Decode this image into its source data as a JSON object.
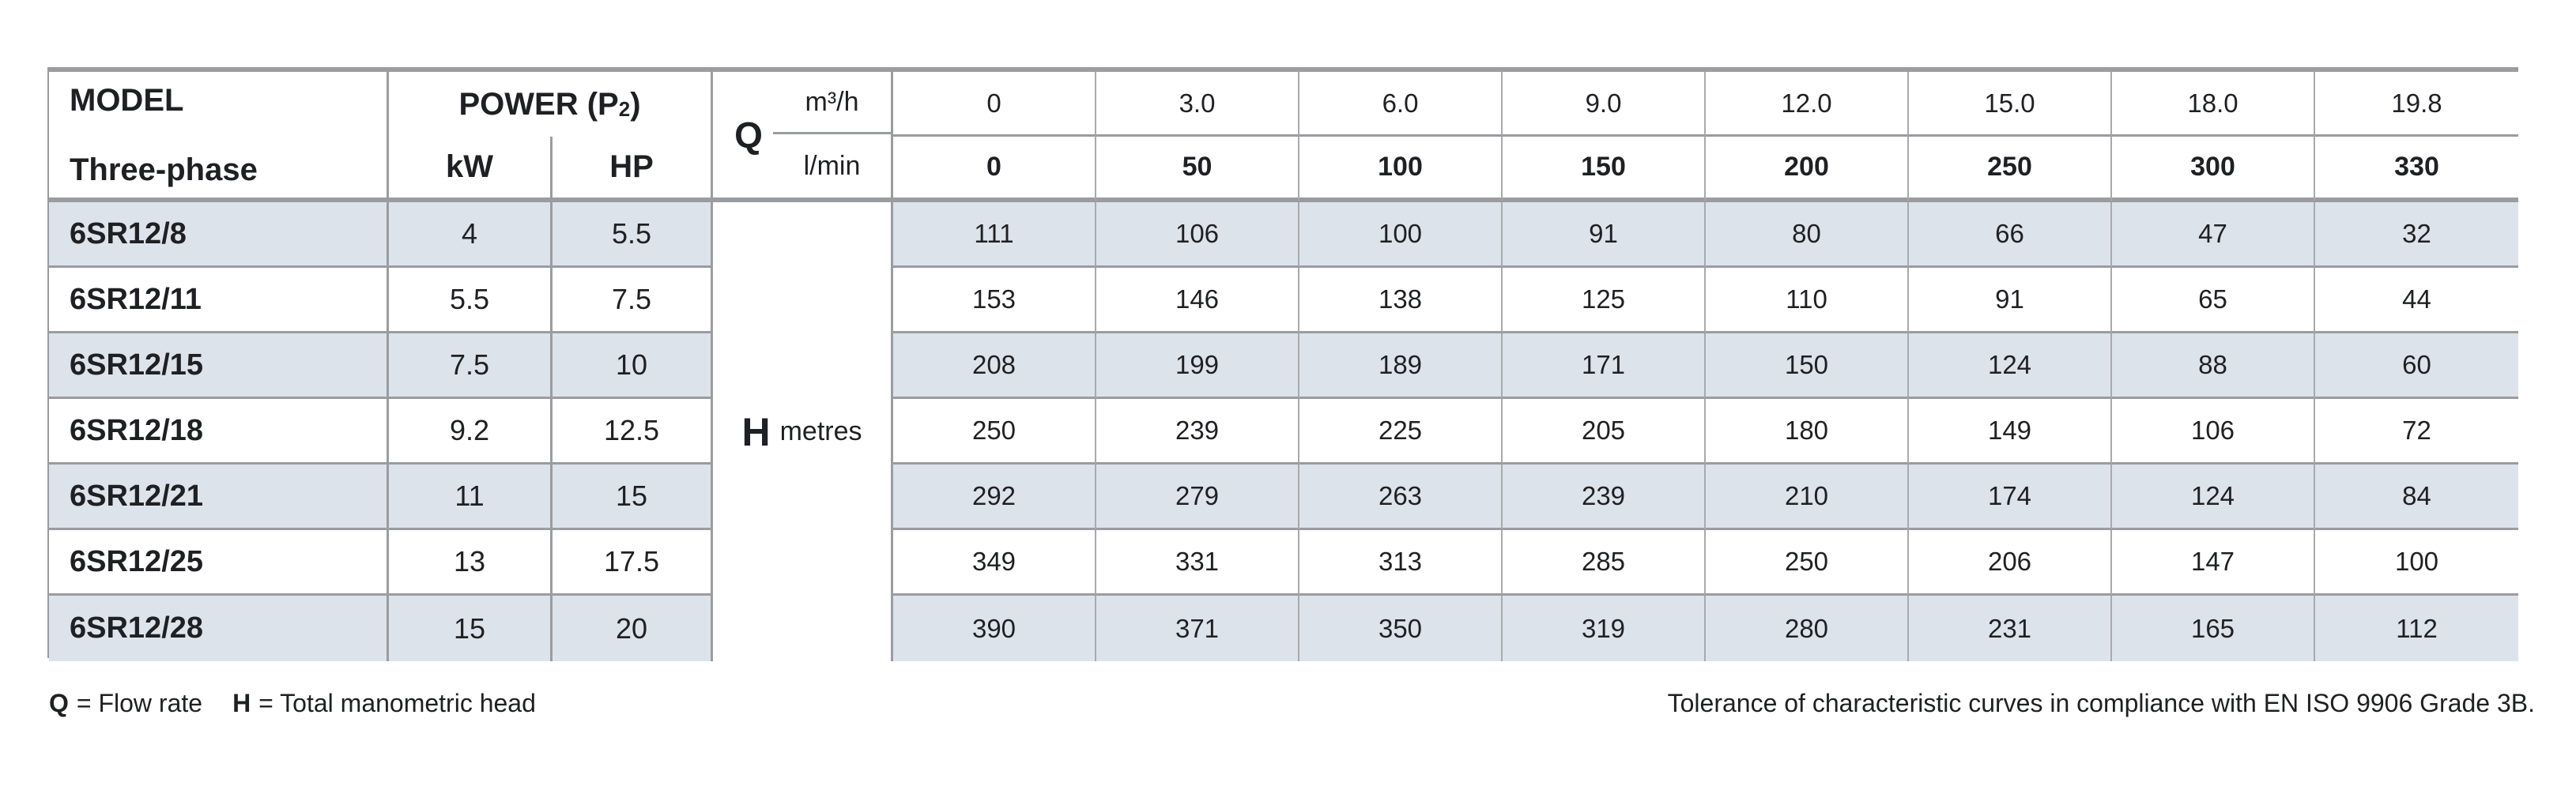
{
  "header": {
    "model_label": "MODEL",
    "model_sub_label": "Three-phase",
    "power_prefix": "POWER (P",
    "power_sub": "2",
    "power_suffix": ")",
    "kw_label": "kW",
    "hp_label": "HP",
    "q_label": "Q",
    "q_unit_top": "m³/h",
    "q_unit_bottom": "l/min",
    "flow_m3h": [
      "0",
      "3.0",
      "6.0",
      "9.0",
      "12.0",
      "15.0",
      "18.0",
      "19.8"
    ],
    "flow_lmin": [
      "0",
      "50",
      "100",
      "150",
      "200",
      "250",
      "300",
      "330"
    ]
  },
  "h_column": {
    "label": "H",
    "unit": "metres"
  },
  "rows": [
    {
      "model": "6SR12/8",
      "kw": "4",
      "hp": "5.5",
      "heads": [
        "111",
        "106",
        "100",
        "91",
        "80",
        "66",
        "47",
        "32"
      ]
    },
    {
      "model": "6SR12/11",
      "kw": "5.5",
      "hp": "7.5",
      "heads": [
        "153",
        "146",
        "138",
        "125",
        "110",
        "91",
        "65",
        "44"
      ]
    },
    {
      "model": "6SR12/15",
      "kw": "7.5",
      "hp": "10",
      "heads": [
        "208",
        "199",
        "189",
        "171",
        "150",
        "124",
        "88",
        "60"
      ]
    },
    {
      "model": "6SR12/18",
      "kw": "9.2",
      "hp": "12.5",
      "heads": [
        "250",
        "239",
        "225",
        "205",
        "180",
        "149",
        "106",
        "72"
      ]
    },
    {
      "model": "6SR12/21",
      "kw": "11",
      "hp": "15",
      "heads": [
        "292",
        "279",
        "263",
        "239",
        "210",
        "174",
        "124",
        "84"
      ]
    },
    {
      "model": "6SR12/25",
      "kw": "13",
      "hp": "17.5",
      "heads": [
        "349",
        "331",
        "313",
        "285",
        "250",
        "206",
        "147",
        "100"
      ]
    },
    {
      "model": "6SR12/28",
      "kw": "15",
      "hp": "20",
      "heads": [
        "390",
        "371",
        "350",
        "319",
        "280",
        "231",
        "165",
        "112"
      ]
    }
  ],
  "footer": {
    "q_abbr": "Q",
    "q_def": "= Flow rate",
    "h_abbr": "H",
    "h_def": "= Total manometric head",
    "tolerance_note": "Tolerance of characteristic curves in compliance with EN ISO 9906 Grade 3B."
  },
  "colors": {
    "row_shade": "#dde3ea",
    "border_grey": "#9a9ca0",
    "text": "#1f2023"
  },
  "chart_data": {
    "type": "table",
    "title": "6SR12 three-phase pump performance: total manometric head H (metres) vs flow rate Q",
    "flow_units": [
      "m³/h",
      "l/min"
    ],
    "flow_m3h": [
      0,
      3.0,
      6.0,
      9.0,
      12.0,
      15.0,
      18.0,
      19.8
    ],
    "flow_lmin": [
      0,
      50,
      100,
      150,
      200,
      250,
      300,
      330
    ],
    "series": [
      {
        "name": "6SR12/8",
        "kw": 4,
        "hp": 5.5,
        "values": [
          111,
          106,
          100,
          91,
          80,
          66,
          47,
          32
        ]
      },
      {
        "name": "6SR12/11",
        "kw": 5.5,
        "hp": 7.5,
        "values": [
          153,
          146,
          138,
          125,
          110,
          91,
          65,
          44
        ]
      },
      {
        "name": "6SR12/15",
        "kw": 7.5,
        "hp": 10,
        "values": [
          208,
          199,
          189,
          171,
          150,
          124,
          88,
          60
        ]
      },
      {
        "name": "6SR12/18",
        "kw": 9.2,
        "hp": 12.5,
        "values": [
          250,
          239,
          225,
          205,
          180,
          149,
          106,
          72
        ]
      },
      {
        "name": "6SR12/21",
        "kw": 11,
        "hp": 15,
        "values": [
          292,
          279,
          263,
          239,
          210,
          174,
          124,
          84
        ]
      },
      {
        "name": "6SR12/25",
        "kw": 13,
        "hp": 17.5,
        "values": [
          349,
          331,
          313,
          285,
          250,
          206,
          147,
          100
        ]
      },
      {
        "name": "6SR12/28",
        "kw": 15,
        "hp": 20,
        "values": [
          390,
          371,
          350,
          319,
          280,
          231,
          165,
          112
        ]
      }
    ]
  }
}
